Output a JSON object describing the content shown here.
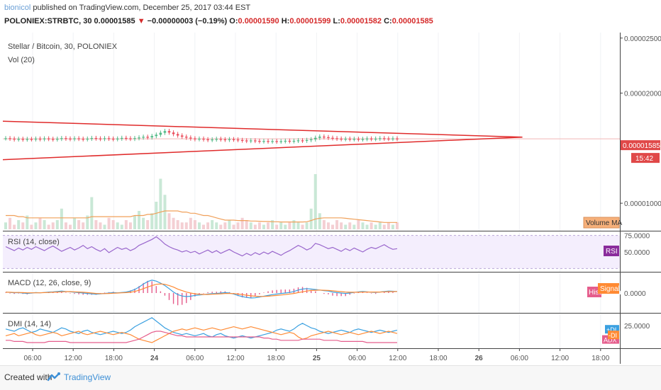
{
  "header": {
    "author": "bionicol",
    "published_text": "published on TradingView.com, December 25, 2017 03:44 EST"
  },
  "ohlc": {
    "symbol": "POLONIEX:STRBTC, 30",
    "last": "0.00001585",
    "change": "−0.00000003 (−0.19%)",
    "o_label": "O:",
    "o_value": "0.00001590",
    "h_label": "H:",
    "h_value": "0.00001599",
    "l_label": "L:",
    "l_value": "0.00001582",
    "c_label": "C:",
    "c_value": "0.00001585"
  },
  "footer": {
    "created_with": "Created with",
    "brand": "TradingView"
  },
  "colors": {
    "accent_red": "#e02b2b",
    "bull": "#53b987",
    "bear": "#eb4d5c",
    "vol_ma": "#f0a05a",
    "rsi_line": "#9966cc",
    "rsi_bg": "#f4eefd",
    "macd": "#3aa0e0",
    "signal": "#ff8a33",
    "hist": "#e55d8c",
    "plus_di": "#3aa0e0",
    "minus_di": "#ff8a33",
    "adx": "#e55d8c"
  },
  "chart_data": [
    {
      "type": "candlestick",
      "title": "Stellar / Bitcoin, 30, POLONIEX",
      "x_ticks": [
        "06:00",
        "12:00",
        "18:00",
        "24",
        "06:00",
        "12:00",
        "18:00",
        "25",
        "06:00",
        "12:00",
        "18:00",
        "26",
        "06:00",
        "12:00",
        "18:00"
      ],
      "y_ticks": [
        "0.00002500",
        "0.00002000",
        "0.00001000"
      ],
      "ylim": [
        7.5e-06,
        2.55e-05
      ],
      "last_price_label": "0.00001585",
      "countdown_label": "15:42",
      "close_series": [
        1.59e-05,
        1.586e-05,
        1.58e-05,
        1.584e-05,
        1.579e-05,
        1.583e-05,
        1.581e-05,
        1.586e-05,
        1.582e-05,
        1.588e-05,
        1.584e-05,
        1.58e-05,
        1.585e-05,
        1.591e-05,
        1.587e-05,
        1.583e-05,
        1.589e-05,
        1.585e-05,
        1.581e-05,
        1.586e-05,
        1.592e-05,
        1.588e-05,
        1.584e-05,
        1.59e-05,
        1.586e-05,
        1.582e-05,
        1.587e-05,
        1.593e-05,
        1.589e-05,
        1.585e-05,
        1.591e-05,
        1.597e-05,
        1.603e-05,
        1.598e-05,
        1.61e-05,
        1.622e-05,
        1.64e-05,
        1.655e-05,
        1.642e-05,
        1.628e-05,
        1.615e-05,
        1.604e-05,
        1.596e-05,
        1.588e-05,
        1.582e-05,
        1.586e-05,
        1.58e-05,
        1.575e-05,
        1.579e-05,
        1.584e-05,
        1.58e-05,
        1.576e-05,
        1.581e-05,
        1.578e-05,
        1.574e-05,
        1.57e-05,
        1.566e-05,
        1.57e-05,
        1.566e-05,
        1.562e-05,
        1.565e-05,
        1.561e-05,
        1.564e-05,
        1.56e-05,
        1.563e-05,
        1.567e-05,
        1.563e-05,
        1.567e-05,
        1.571e-05,
        1.568e-05,
        1.574e-05,
        1.58e-05,
        1.594e-05,
        1.605e-05,
        1.6e-05,
        1.594e-05,
        1.59e-05,
        1.586e-05,
        1.582e-05,
        1.585e-05,
        1.581e-05,
        1.584e-05,
        1.58e-05,
        1.583e-05,
        1.587e-05,
        1.583e-05,
        1.586e-05,
        1.59e-05,
        1.587e-05,
        1.584e-05,
        1.588e-05,
        1.585e-05
      ],
      "triangle": {
        "upper": [
          {
            "x": 0,
            "y": 1.745e-05
          },
          {
            "x": 0.842,
            "y": 1.6e-05
          }
        ],
        "lower": [
          {
            "x": 0,
            "y": 1.395e-05
          },
          {
            "x": 0.842,
            "y": 1.6e-05
          }
        ]
      }
    },
    {
      "type": "bar",
      "title": "Vol (20)",
      "legend": "Volume MA",
      "values": [
        3,
        5,
        2,
        4,
        3,
        6,
        2,
        3,
        5,
        4,
        2,
        3,
        4,
        9,
        3,
        2,
        5,
        4,
        3,
        6,
        14,
        4,
        3,
        2,
        5,
        4,
        3,
        2,
        4,
        3,
        6,
        8,
        5,
        4,
        7,
        12,
        22,
        15,
        7,
        5,
        4,
        3,
        3,
        5,
        4,
        3,
        2,
        3,
        4,
        3,
        2,
        3,
        4,
        2,
        3,
        5,
        4,
        3,
        2,
        3,
        2,
        3,
        4,
        2,
        3,
        2,
        3,
        4,
        3,
        2,
        3,
        9,
        24,
        7,
        4,
        3,
        2,
        4,
        3,
        2,
        3,
        2,
        4,
        3,
        2,
        3,
        2,
        3,
        2,
        3,
        2,
        3
      ],
      "ma": [
        6,
        6,
        6,
        5.5,
        5.5,
        5,
        5,
        5,
        5,
        5,
        5,
        5,
        5,
        5,
        5,
        5,
        5,
        5,
        5,
        5,
        5.5,
        5.5,
        5.5,
        5.5,
        5.5,
        5.5,
        5.5,
        5.5,
        5.5,
        5.5,
        6,
        6,
        6,
        6.5,
        6.5,
        7,
        7.5,
        8,
        8,
        8,
        8,
        7.5,
        7.5,
        7,
        7,
        6.5,
        6,
        6,
        5.5,
        5,
        4.5,
        4,
        4,
        4,
        3.8,
        3.8,
        3.8,
        3.6,
        3.6,
        3.5,
        3.4,
        3.4,
        3.3,
        3.3,
        3.2,
        3.2,
        3.2,
        3.2,
        3.2,
        3.2,
        3.3,
        3.8,
        4.5,
        4.8,
        5,
        5,
        5,
        5,
        5,
        4.8,
        4.6,
        4.4,
        4.2,
        4,
        3.8,
        3.6,
        3.4,
        3.2,
        3,
        3,
        3,
        3
      ]
    },
    {
      "type": "line",
      "title": "RSI (14, close)",
      "legend": "RSI",
      "y_ticks": [
        "75.0000",
        "50.0000"
      ],
      "ylim": [
        20,
        80
      ],
      "values": [
        58,
        55,
        52,
        56,
        53,
        57,
        54,
        58,
        55,
        52,
        56,
        59,
        55,
        51,
        54,
        57,
        53,
        56,
        60,
        55,
        58,
        54,
        51,
        55,
        49,
        53,
        57,
        54,
        56,
        52,
        55,
        60,
        63,
        66,
        69,
        73,
        68,
        62,
        58,
        55,
        53,
        50,
        52,
        49,
        51,
        47,
        50,
        53,
        49,
        52,
        48,
        51,
        54,
        50,
        47,
        44,
        48,
        45,
        49,
        46,
        50,
        47,
        51,
        48,
        45,
        49,
        52,
        56,
        60,
        57,
        53,
        56,
        63,
        61,
        58,
        55,
        57,
        54,
        51,
        55,
        52,
        56,
        53,
        50,
        54,
        57,
        55,
        58,
        61,
        57,
        54,
        55
      ]
    },
    {
      "type": "line",
      "title": "MACD (12, 26, close, 9)",
      "legend": [
        "Histogram",
        "Signal"
      ],
      "y_ticks": [
        "0.0000"
      ],
      "ylim": [
        -1,
        1
      ],
      "macd": [
        0.05,
        0.03,
        0.01,
        0.02,
        0.0,
        -0.02,
        0.0,
        0.02,
        0.01,
        0.03,
        0.05,
        0.06,
        0.08,
        0.1,
        0.08,
        0.06,
        0.04,
        0.02,
        0.0,
        -0.02,
        -0.04,
        -0.06,
        -0.04,
        -0.02,
        0.0,
        0.02,
        0.01,
        0.03,
        0.05,
        0.1,
        0.18,
        0.3,
        0.45,
        0.58,
        0.65,
        0.6,
        0.5,
        0.38,
        0.22,
        0.05,
        -0.08,
        -0.15,
        -0.18,
        -0.16,
        -0.12,
        -0.1,
        -0.08,
        -0.05,
        -0.03,
        -0.02,
        0.0,
        0.02,
        0.0,
        -0.05,
        -0.12,
        -0.18,
        -0.22,
        -0.25,
        -0.24,
        -0.2,
        -0.16,
        -0.12,
        -0.08,
        -0.05,
        -0.02,
        0.0,
        0.03,
        0.08,
        0.15,
        0.2,
        0.22,
        0.2,
        0.18,
        0.15,
        0.12,
        0.1,
        0.05,
        0.02,
        0.0,
        -0.02,
        0.0,
        0.03,
        0.06,
        0.08,
        0.06,
        0.04,
        0.03,
        0.05,
        0.08,
        0.1,
        0.09,
        0.08
      ],
      "signal": [
        0.04,
        0.04,
        0.03,
        0.03,
        0.02,
        0.01,
        0.01,
        0.01,
        0.01,
        0.02,
        0.03,
        0.04,
        0.05,
        0.06,
        0.07,
        0.07,
        0.06,
        0.05,
        0.04,
        0.02,
        0.0,
        -0.02,
        -0.03,
        -0.03,
        -0.02,
        -0.01,
        0.0,
        0.01,
        0.02,
        0.04,
        0.08,
        0.14,
        0.22,
        0.3,
        0.38,
        0.44,
        0.46,
        0.44,
        0.38,
        0.3,
        0.2,
        0.12,
        0.05,
        0.0,
        -0.04,
        -0.06,
        -0.07,
        -0.07,
        -0.06,
        -0.05,
        -0.04,
        -0.02,
        -0.02,
        -0.03,
        -0.05,
        -0.08,
        -0.11,
        -0.14,
        -0.16,
        -0.17,
        -0.17,
        -0.16,
        -0.14,
        -0.12,
        -0.1,
        -0.08,
        -0.05,
        -0.02,
        0.02,
        0.06,
        0.1,
        0.13,
        0.14,
        0.15,
        0.14,
        0.13,
        0.11,
        0.09,
        0.07,
        0.05,
        0.04,
        0.04,
        0.04,
        0.05,
        0.05,
        0.05,
        0.05,
        0.05,
        0.06,
        0.07,
        0.07,
        0.08
      ]
    },
    {
      "type": "line",
      "title": "DMI (14, 14)",
      "legend": [
        "+DI",
        "-DI",
        "ADX"
      ],
      "y_ticks": [
        "25.0000"
      ],
      "ylim": [
        5,
        35
      ],
      "plus_di": [
        22,
        21,
        20,
        22,
        23,
        21,
        19,
        20,
        22,
        21,
        20,
        19,
        21,
        23,
        22,
        20,
        19,
        18,
        20,
        21,
        19,
        18,
        17,
        18,
        19,
        20,
        19,
        18,
        19,
        21,
        24,
        26,
        28,
        30,
        32,
        29,
        26,
        23,
        21,
        19,
        18,
        17,
        18,
        17,
        16,
        17,
        18,
        16,
        15,
        17,
        18,
        16,
        15,
        14,
        15,
        16,
        15,
        14,
        15,
        16,
        17,
        18,
        19,
        21,
        22,
        21,
        20,
        22,
        25,
        27,
        25,
        23,
        22,
        20,
        19,
        18,
        19,
        20,
        21,
        20,
        19,
        21,
        22,
        21,
        20,
        19,
        20,
        21,
        20,
        19,
        20,
        21
      ],
      "minus_di": [
        16,
        17,
        18,
        16,
        17,
        18,
        19,
        17,
        16,
        17,
        18,
        19,
        18,
        16,
        17,
        18,
        19,
        20,
        18,
        17,
        18,
        19,
        20,
        19,
        18,
        17,
        18,
        19,
        18,
        17,
        15,
        13,
        12,
        11,
        10,
        12,
        14,
        16,
        18,
        20,
        21,
        22,
        21,
        22,
        23,
        22,
        21,
        22,
        23,
        22,
        21,
        22,
        23,
        24,
        23,
        22,
        23,
        24,
        23,
        22,
        21,
        20,
        19,
        18,
        17,
        18,
        19,
        18,
        15,
        13,
        14,
        16,
        17,
        18,
        19,
        20,
        19,
        18,
        17,
        18,
        19,
        18,
        17,
        18,
        19,
        20,
        19,
        18,
        19,
        20,
        19,
        18
      ],
      "adx": [
        12,
        12,
        11,
        11,
        11,
        10,
        10,
        10,
        10,
        10,
        11,
        11,
        11,
        11,
        11,
        10,
        10,
        10,
        10,
        10,
        10,
        10,
        10,
        10,
        10,
        10,
        10,
        10,
        10,
        11,
        12,
        13,
        15,
        17,
        19,
        20,
        20,
        19,
        18,
        17,
        16,
        16,
        15,
        15,
        15,
        15,
        15,
        15,
        15,
        15,
        15,
        15,
        15,
        15,
        15,
        15,
        15,
        15,
        15,
        15,
        14,
        14,
        13,
        13,
        12,
        12,
        12,
        12,
        12,
        13,
        13,
        13,
        13,
        13,
        12,
        12,
        12,
        12,
        11,
        11,
        11,
        11,
        11,
        11,
        10,
        10,
        10,
        10,
        10,
        10,
        10,
        10
      ]
    }
  ]
}
